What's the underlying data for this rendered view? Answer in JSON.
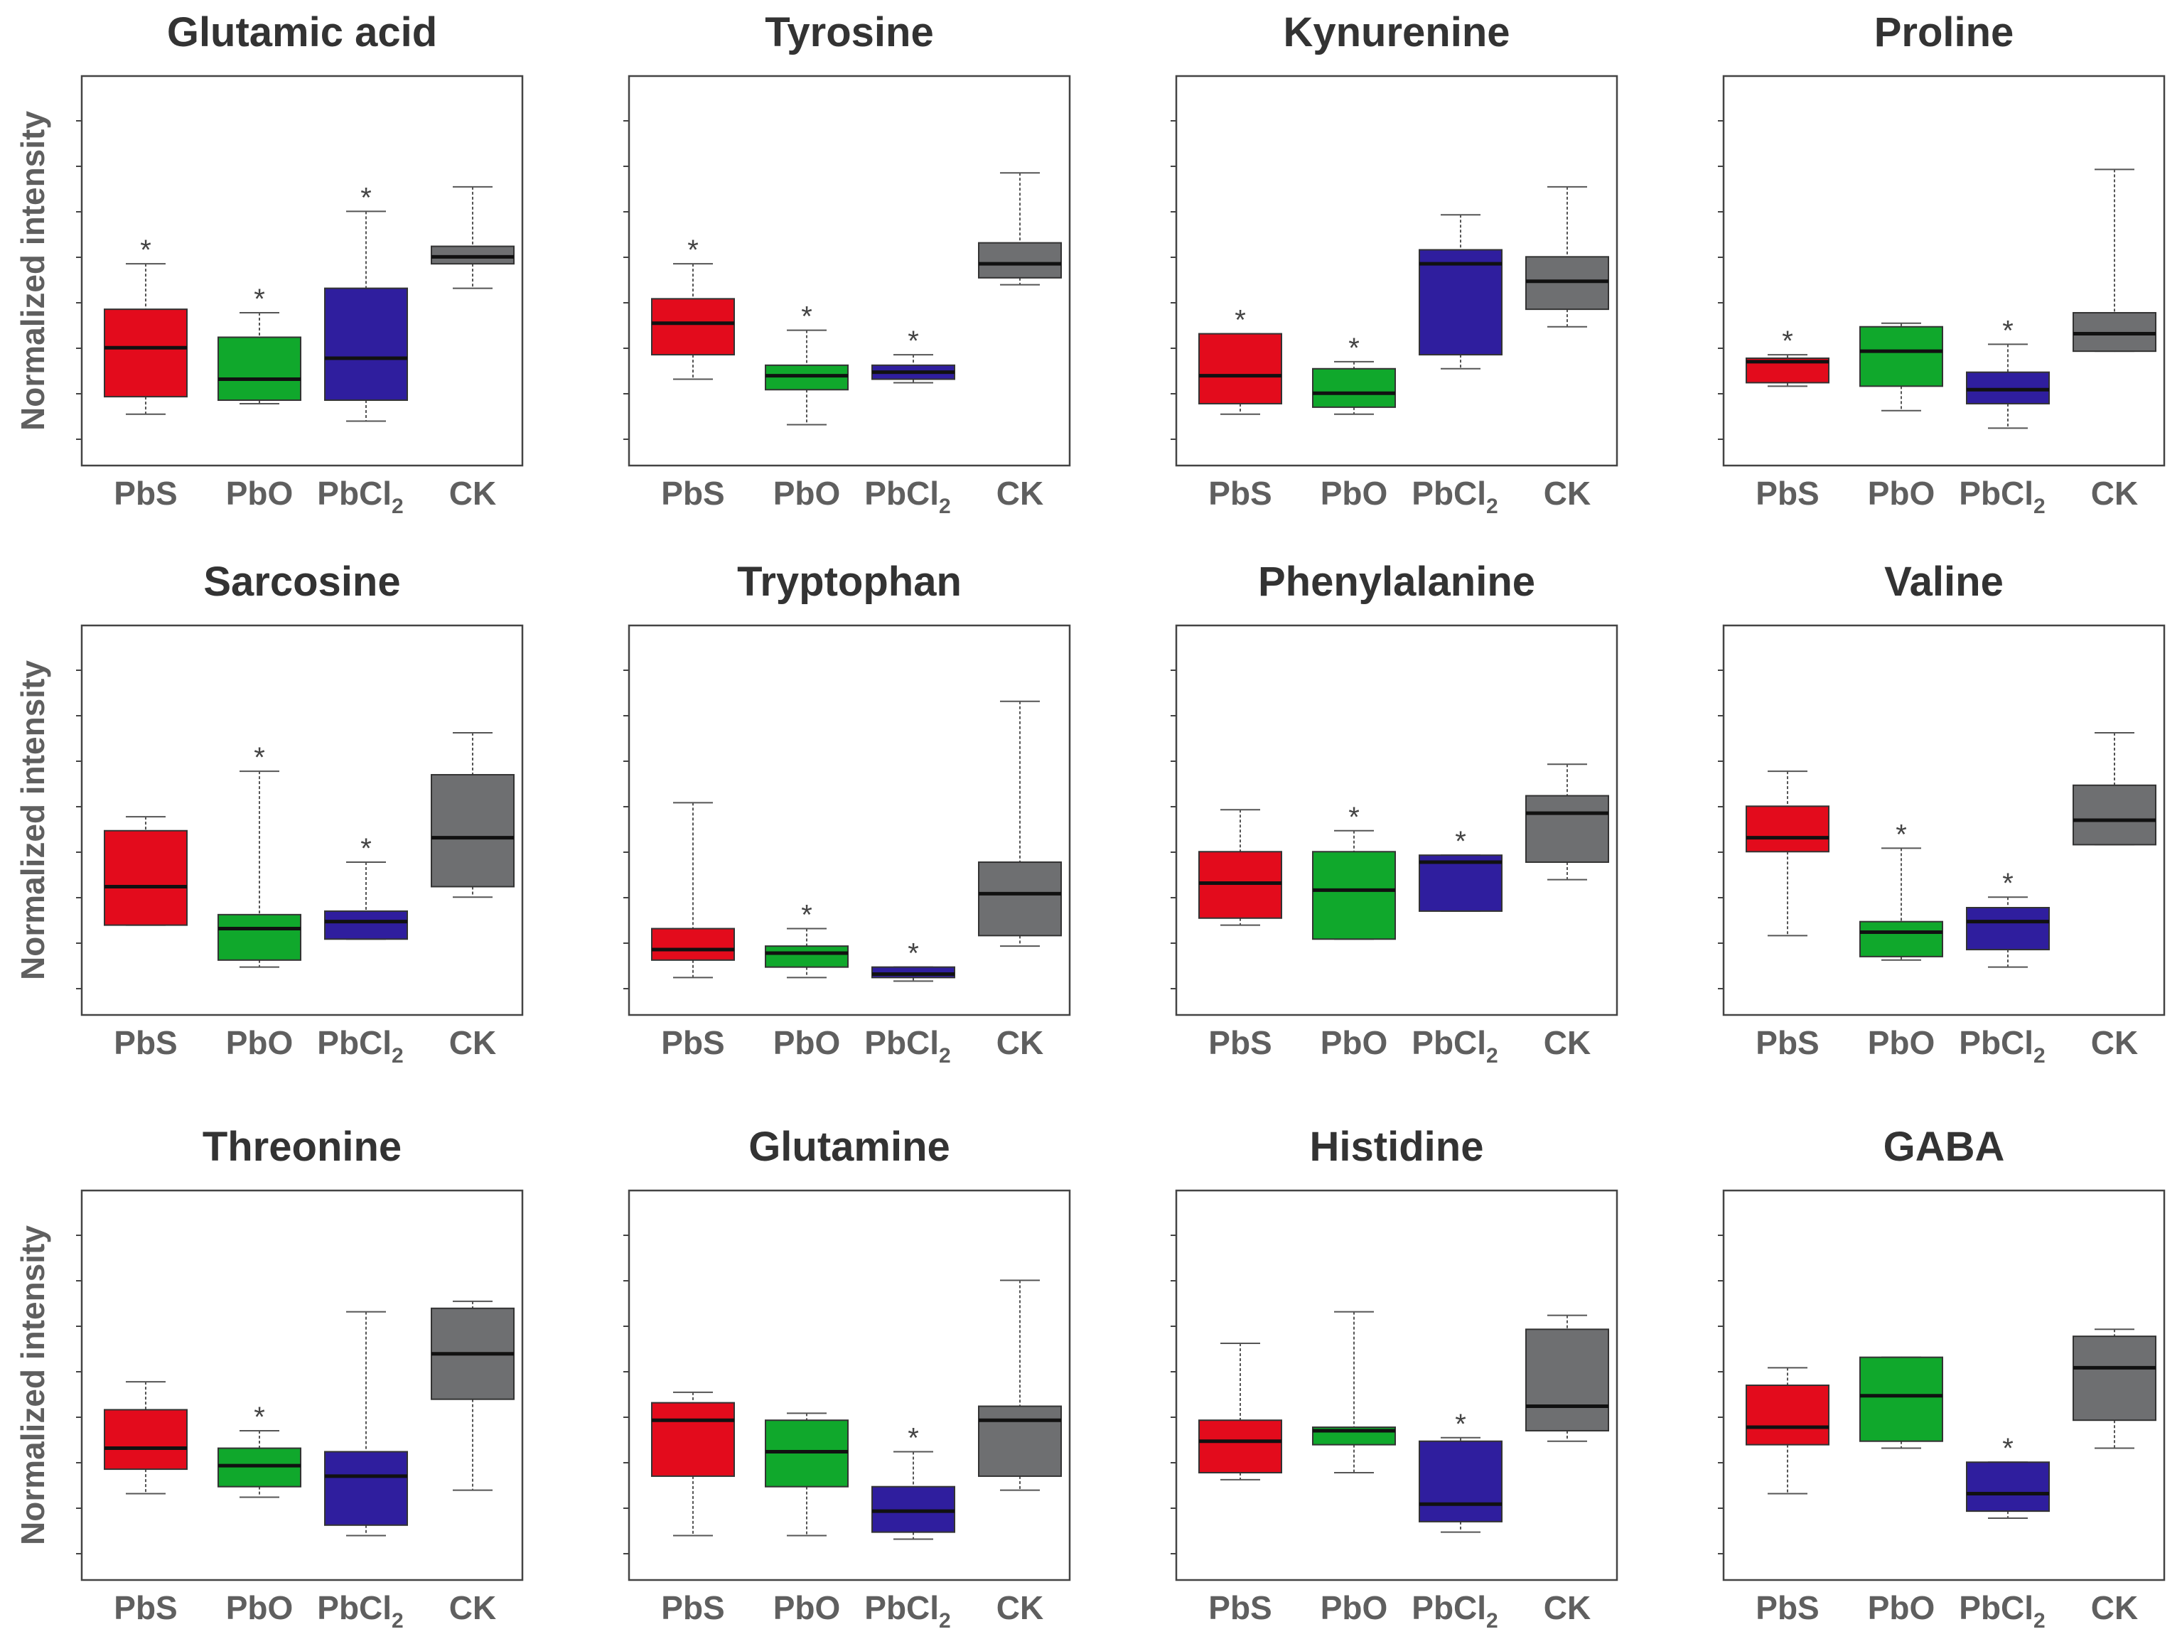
{
  "figure": {
    "ylabel": "Normalized intensity"
  },
  "chart_data": [
    {
      "type": "box",
      "title": "Glutamic acid",
      "categories": [
        "PbS",
        "PbO",
        "PbCl2",
        "CK"
      ],
      "ylim": [
        0,
        1
      ],
      "boxes": [
        {
          "min": 0.09,
          "q1": 0.14,
          "median": 0.28,
          "q3": 0.39,
          "max": 0.52
        },
        {
          "min": 0.12,
          "q1": 0.13,
          "median": 0.19,
          "q3": 0.31,
          "max": 0.38
        },
        {
          "min": 0.07,
          "q1": 0.13,
          "median": 0.25,
          "q3": 0.45,
          "max": 0.67
        },
        {
          "min": 0.45,
          "q1": 0.52,
          "median": 0.54,
          "q3": 0.57,
          "max": 0.74
        }
      ],
      "significant": [
        true,
        true,
        true,
        false
      ]
    },
    {
      "type": "box",
      "title": "Tyrosine",
      "categories": [
        "PbS",
        "PbO",
        "PbCl2",
        "CK"
      ],
      "ylim": [
        0,
        1
      ],
      "boxes": [
        {
          "min": 0.19,
          "q1": 0.26,
          "median": 0.35,
          "q3": 0.42,
          "max": 0.52
        },
        {
          "min": 0.06,
          "q1": 0.16,
          "median": 0.2,
          "q3": 0.23,
          "max": 0.33
        },
        {
          "min": 0.18,
          "q1": 0.19,
          "median": 0.21,
          "q3": 0.23,
          "max": 0.26
        },
        {
          "min": 0.46,
          "q1": 0.48,
          "median": 0.52,
          "q3": 0.58,
          "max": 0.78
        }
      ],
      "significant": [
        true,
        true,
        true,
        false
      ]
    },
    {
      "type": "box",
      "title": "Kynurenine",
      "categories": [
        "PbS",
        "PbO",
        "PbCl2",
        "CK"
      ],
      "ylim": [
        0,
        1
      ],
      "boxes": [
        {
          "min": 0.09,
          "q1": 0.12,
          "median": 0.2,
          "q3": 0.32,
          "max": 0.32
        },
        {
          "min": 0.09,
          "q1": 0.11,
          "median": 0.15,
          "q3": 0.22,
          "max": 0.24
        },
        {
          "min": 0.22,
          "q1": 0.26,
          "median": 0.52,
          "q3": 0.56,
          "max": 0.66
        },
        {
          "min": 0.34,
          "q1": 0.39,
          "median": 0.47,
          "q3": 0.54,
          "max": 0.74
        }
      ],
      "significant": [
        true,
        true,
        false,
        false
      ]
    },
    {
      "type": "box",
      "title": "Proline",
      "categories": [
        "PbS",
        "PbO",
        "PbCl2",
        "CK"
      ],
      "ylim": [
        0,
        1
      ],
      "boxes": [
        {
          "min": 0.17,
          "q1": 0.18,
          "median": 0.24,
          "q3": 0.25,
          "max": 0.26
        },
        {
          "min": 0.1,
          "q1": 0.17,
          "median": 0.27,
          "q3": 0.34,
          "max": 0.35
        },
        {
          "min": 0.05,
          "q1": 0.12,
          "median": 0.16,
          "q3": 0.21,
          "max": 0.29
        },
        {
          "min": 0.27,
          "q1": 0.27,
          "median": 0.32,
          "q3": 0.38,
          "max": 0.79
        }
      ],
      "significant": [
        true,
        false,
        true,
        false
      ]
    },
    {
      "type": "box",
      "title": "Sarcosine",
      "categories": [
        "PbS",
        "PbO",
        "PbCl2",
        "CK"
      ],
      "ylim": [
        0,
        1
      ],
      "boxes": [
        {
          "min": 0.2,
          "q1": 0.2,
          "median": 0.31,
          "q3": 0.47,
          "max": 0.51
        },
        {
          "min": 0.08,
          "q1": 0.1,
          "median": 0.19,
          "q3": 0.23,
          "max": 0.64
        },
        {
          "min": 0.16,
          "q1": 0.16,
          "median": 0.21,
          "q3": 0.24,
          "max": 0.38
        },
        {
          "min": 0.28,
          "q1": 0.31,
          "median": 0.45,
          "q3": 0.63,
          "max": 0.75
        }
      ],
      "significant": [
        false,
        true,
        true,
        false
      ]
    },
    {
      "type": "box",
      "title": "Tryptophan",
      "categories": [
        "PbS",
        "PbO",
        "PbCl2",
        "CK"
      ],
      "ylim": [
        0,
        1
      ],
      "boxes": [
        {
          "min": 0.05,
          "q1": 0.1,
          "median": 0.13,
          "q3": 0.19,
          "max": 0.55
        },
        {
          "min": 0.05,
          "q1": 0.08,
          "median": 0.12,
          "q3": 0.14,
          "max": 0.19
        },
        {
          "min": 0.04,
          "q1": 0.05,
          "median": 0.06,
          "q3": 0.08,
          "max": 0.08
        },
        {
          "min": 0.14,
          "q1": 0.17,
          "median": 0.29,
          "q3": 0.38,
          "max": 0.84
        }
      ],
      "significant": [
        false,
        true,
        true,
        false
      ]
    },
    {
      "type": "box",
      "title": "Phenylalanine",
      "categories": [
        "PbS",
        "PbO",
        "PbCl2",
        "CK"
      ],
      "ylim": [
        0,
        1
      ],
      "boxes": [
        {
          "min": 0.2,
          "q1": 0.22,
          "median": 0.32,
          "q3": 0.41,
          "max": 0.53
        },
        {
          "min": 0.16,
          "q1": 0.16,
          "median": 0.3,
          "q3": 0.41,
          "max": 0.47
        },
        {
          "min": 0.24,
          "q1": 0.24,
          "median": 0.38,
          "q3": 0.4,
          "max": 0.4
        },
        {
          "min": 0.33,
          "q1": 0.38,
          "median": 0.52,
          "q3": 0.57,
          "max": 0.66
        }
      ],
      "significant": [
        false,
        true,
        true,
        false
      ]
    },
    {
      "type": "box",
      "title": "Valine",
      "categories": [
        "PbS",
        "PbO",
        "PbCl2",
        "CK"
      ],
      "ylim": [
        0,
        1
      ],
      "boxes": [
        {
          "min": 0.17,
          "q1": 0.41,
          "median": 0.45,
          "q3": 0.54,
          "max": 0.64
        },
        {
          "min": 0.1,
          "q1": 0.11,
          "median": 0.18,
          "q3": 0.21,
          "max": 0.42
        },
        {
          "min": 0.08,
          "q1": 0.13,
          "median": 0.21,
          "q3": 0.25,
          "max": 0.28
        },
        {
          "min": 0.43,
          "q1": 0.43,
          "median": 0.5,
          "q3": 0.6,
          "max": 0.75
        }
      ],
      "significant": [
        false,
        true,
        true,
        false
      ]
    },
    {
      "type": "box",
      "title": "Threonine",
      "categories": [
        "PbS",
        "PbO",
        "PbCl2",
        "CK"
      ],
      "ylim": [
        0,
        1
      ],
      "boxes": [
        {
          "min": 0.19,
          "q1": 0.26,
          "median": 0.32,
          "q3": 0.43,
          "max": 0.51
        },
        {
          "min": 0.18,
          "q1": 0.21,
          "median": 0.27,
          "q3": 0.32,
          "max": 0.37
        },
        {
          "min": 0.07,
          "q1": 0.1,
          "median": 0.24,
          "q3": 0.31,
          "max": 0.71
        },
        {
          "min": 0.2,
          "q1": 0.46,
          "median": 0.59,
          "q3": 0.72,
          "max": 0.74
        }
      ],
      "significant": [
        false,
        true,
        false,
        false
      ]
    },
    {
      "type": "box",
      "title": "Glutamine",
      "categories": [
        "PbS",
        "PbO",
        "PbCl2",
        "CK"
      ],
      "ylim": [
        0,
        1
      ],
      "boxes": [
        {
          "min": 0.07,
          "q1": 0.24,
          "median": 0.4,
          "q3": 0.45,
          "max": 0.48
        },
        {
          "min": 0.07,
          "q1": 0.21,
          "median": 0.31,
          "q3": 0.4,
          "max": 0.42
        },
        {
          "min": 0.06,
          "q1": 0.08,
          "median": 0.14,
          "q3": 0.21,
          "max": 0.31
        },
        {
          "min": 0.2,
          "q1": 0.24,
          "median": 0.4,
          "q3": 0.44,
          "max": 0.8
        }
      ],
      "significant": [
        false,
        false,
        true,
        false
      ]
    },
    {
      "type": "box",
      "title": "Histidine",
      "categories": [
        "PbS",
        "PbO",
        "PbCl2",
        "CK"
      ],
      "ylim": [
        0,
        1
      ],
      "boxes": [
        {
          "min": 0.23,
          "q1": 0.25,
          "median": 0.34,
          "q3": 0.4,
          "max": 0.62
        },
        {
          "min": 0.25,
          "q1": 0.33,
          "median": 0.37,
          "q3": 0.38,
          "max": 0.71
        },
        {
          "min": 0.08,
          "q1": 0.11,
          "median": 0.16,
          "q3": 0.34,
          "max": 0.35
        },
        {
          "min": 0.34,
          "q1": 0.37,
          "median": 0.44,
          "q3": 0.66,
          "max": 0.7
        }
      ],
      "significant": [
        false,
        false,
        true,
        false
      ]
    },
    {
      "type": "box",
      "title": "GABA",
      "categories": [
        "PbS",
        "PbO",
        "PbCl2",
        "CK"
      ],
      "ylim": [
        0,
        1
      ],
      "boxes": [
        {
          "min": 0.19,
          "q1": 0.33,
          "median": 0.38,
          "q3": 0.5,
          "max": 0.55
        },
        {
          "min": 0.32,
          "q1": 0.34,
          "median": 0.47,
          "q3": 0.58,
          "max": 0.58
        },
        {
          "min": 0.12,
          "q1": 0.14,
          "median": 0.19,
          "q3": 0.28,
          "max": 0.28
        },
        {
          "min": 0.32,
          "q1": 0.4,
          "median": 0.55,
          "q3": 0.64,
          "max": 0.66
        }
      ],
      "significant": [
        false,
        false,
        true,
        false
      ]
    }
  ],
  "colors": {
    "PbS": "#e30b1c",
    "PbO": "#10a82c",
    "PbCl2": "#2f1e9e",
    "CK": "#6e6f71"
  },
  "significance_marker": "*"
}
